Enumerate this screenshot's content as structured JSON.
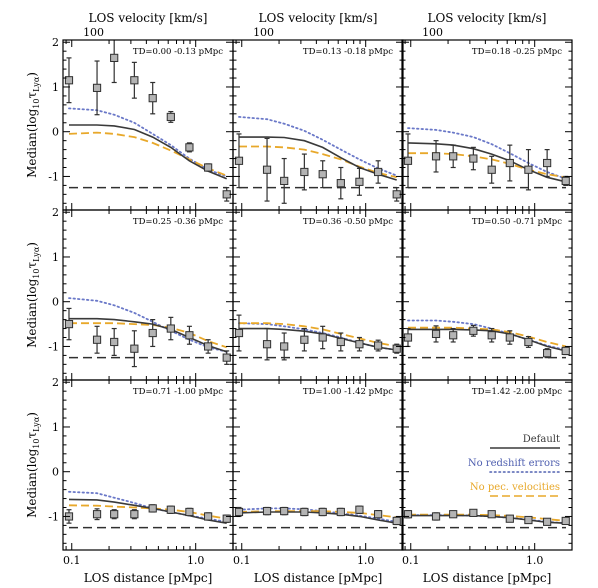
{
  "chart_data": {
    "type": "scatter",
    "top_axis_label": "LOS velocity [km/s]",
    "top_tick_label": "100",
    "top_tick_value_x": 0.15,
    "xlabel": "LOS distance [pMpc]",
    "ylabel": "Median(log10 τLyα)",
    "ylabel_main": "Median(log",
    "ylabel_sub": "10",
    "ylabel_tau": "τ",
    "ylabel_tau_sub": "Lyα",
    "ylabel_close": ")",
    "x_scale": "log",
    "xlim": [
      0.085,
      2.0
    ],
    "ylim": [
      -1.75,
      2.05
    ],
    "x_ticks": [
      {
        "value": 0.1,
        "label": "0.1"
      },
      {
        "value": 1.0,
        "label": "1.0"
      }
    ],
    "y_ticks": [
      {
        "value": 2,
        "label": "2"
      },
      {
        "value": 1,
        "label": "1"
      },
      {
        "value": 0,
        "label": "0"
      },
      {
        "value": -1,
        "label": "-1"
      }
    ],
    "baseline_y": -1.25,
    "x": [
      0.095,
      0.16,
      0.22,
      0.32,
      0.45,
      0.63,
      0.89,
      1.26,
      1.78
    ],
    "colors": {
      "default": "#3a3a3a",
      "no_redshift": "#6a78c8",
      "no_pec": "#e8a82a",
      "marker_fill": "#b4b4b4",
      "marker_edge": "#303030",
      "baseline": "#303030",
      "axis": "#000000"
    },
    "legend": {
      "placement": "bottom-right of last panel",
      "entries": [
        {
          "label": "Default",
          "style": "solid",
          "color": "#3a3a3a"
        },
        {
          "label": "No redshift errors",
          "style": "dotted",
          "color": "#5060b0"
        },
        {
          "label": "No pec. velocities",
          "style": "dashed",
          "color": "#e8a82a"
        }
      ]
    },
    "panels": [
      {
        "label": "TD=0.00 -0.13 pMpc",
        "y": [
          1.15,
          0.98,
          1.65,
          1.15,
          0.75,
          0.33,
          -0.35,
          -0.8,
          -1.4
        ],
        "err": [
          0.5,
          0.6,
          0.55,
          0.4,
          0.35,
          0.12,
          0.1,
          0.08,
          0.15
        ],
        "default": [
          0.15,
          0.15,
          0.13,
          0.05,
          -0.12,
          -0.35,
          -0.65,
          -0.88,
          -1.05
        ],
        "no_redshift": [
          0.52,
          0.48,
          0.38,
          0.2,
          -0.05,
          -0.3,
          -0.6,
          -0.85,
          -1.0
        ],
        "no_pec": [
          -0.05,
          -0.02,
          -0.05,
          -0.12,
          -0.25,
          -0.42,
          -0.62,
          -0.82,
          -0.98
        ]
      },
      {
        "label": "TD=0.13 -0.18 pMpc",
        "y": [
          -0.65,
          -0.85,
          -1.1,
          -0.9,
          -0.95,
          -1.15,
          -1.12,
          -0.9,
          -1.4
        ],
        "err": [
          0.6,
          0.7,
          0.5,
          0.4,
          0.3,
          0.35,
          0.3,
          0.25,
          0.15
        ],
        "default": [
          -0.12,
          -0.12,
          -0.13,
          -0.2,
          -0.35,
          -0.58,
          -0.8,
          -0.95,
          -1.08
        ],
        "no_redshift": [
          0.33,
          0.28,
          0.18,
          0.02,
          -0.18,
          -0.4,
          -0.62,
          -0.82,
          -0.98
        ],
        "no_pec": [
          -0.33,
          -0.33,
          -0.35,
          -0.4,
          -0.5,
          -0.62,
          -0.78,
          -0.92,
          -1.02
        ]
      },
      {
        "label": "TD=0.18 -0.25 pMpc",
        "y": [
          -0.65,
          -0.55,
          -0.55,
          -0.6,
          -0.85,
          -0.7,
          -0.85,
          -0.7,
          -1.1
        ],
        "err": [
          0.6,
          0.35,
          0.25,
          0.25,
          0.3,
          0.4,
          0.45,
          0.3,
          0.1
        ],
        "default": [
          -0.25,
          -0.27,
          -0.3,
          -0.38,
          -0.5,
          -0.65,
          -0.85,
          -1.02,
          -1.12
        ],
        "no_redshift": [
          0.08,
          0.04,
          -0.02,
          -0.12,
          -0.28,
          -0.48,
          -0.7,
          -0.9,
          -1.05
        ],
        "no_pec": [
          -0.48,
          -0.48,
          -0.5,
          -0.55,
          -0.62,
          -0.72,
          -0.85,
          -0.95,
          -1.02
        ]
      },
      {
        "label": "TD=0.25 -0.36 pMpc",
        "y": [
          -0.5,
          -0.85,
          -0.9,
          -1.05,
          -0.7,
          -0.6,
          -0.75,
          -1.0,
          -1.25
        ],
        "err": [
          0.35,
          0.3,
          0.3,
          0.4,
          0.3,
          0.25,
          0.2,
          0.15,
          0.15
        ],
        "default": [
          -0.38,
          -0.38,
          -0.4,
          -0.45,
          -0.5,
          -0.62,
          -0.8,
          -0.98,
          -1.12
        ],
        "no_redshift": [
          0.08,
          0.02,
          -0.08,
          -0.25,
          -0.45,
          -0.65,
          -0.85,
          -1.02,
          -1.12
        ],
        "no_pec": [
          -0.48,
          -0.48,
          -0.48,
          -0.5,
          -0.52,
          -0.58,
          -0.7,
          -0.88,
          -1.02
        ]
      },
      {
        "label": "TD=0.36 -0.50 pMpc",
        "y": [
          -0.7,
          -0.95,
          -1.0,
          -0.85,
          -0.8,
          -0.9,
          -0.95,
          -0.98,
          -1.05
        ],
        "err": [
          0.4,
          0.35,
          0.3,
          0.25,
          0.25,
          0.2,
          0.15,
          0.12,
          0.1
        ],
        "default": [
          -0.6,
          -0.6,
          -0.62,
          -0.66,
          -0.72,
          -0.82,
          -0.92,
          -1.02,
          -1.08
        ],
        "no_redshift": [
          -0.48,
          -0.5,
          -0.55,
          -0.62,
          -0.7,
          -0.8,
          -0.92,
          -1.02,
          -1.08
        ],
        "no_pec": [
          -0.48,
          -0.48,
          -0.5,
          -0.55,
          -0.62,
          -0.72,
          -0.82,
          -0.92,
          -1.0
        ]
      },
      {
        "label": "TD=0.50 -0.71 pMpc",
        "y": [
          -0.8,
          -0.72,
          -0.75,
          -0.65,
          -0.75,
          -0.8,
          -0.9,
          -1.15,
          -1.1
        ],
        "err": [
          0.2,
          0.18,
          0.15,
          0.12,
          0.15,
          0.15,
          0.12,
          0.1,
          0.08
        ],
        "default": [
          -0.62,
          -0.62,
          -0.62,
          -0.63,
          -0.65,
          -0.72,
          -0.85,
          -1.0,
          -1.1
        ],
        "no_redshift": [
          -0.42,
          -0.42,
          -0.45,
          -0.5,
          -0.6,
          -0.72,
          -0.85,
          -0.98,
          -1.08
        ],
        "no_pec": [
          -0.58,
          -0.58,
          -0.58,
          -0.6,
          -0.62,
          -0.68,
          -0.78,
          -0.9,
          -1.0
        ]
      },
      {
        "label": "TD=0.71 -1.00 pMpc",
        "y": [
          -1.0,
          -0.95,
          -0.95,
          -0.95,
          -0.82,
          -0.85,
          -0.9,
          -1.0,
          -1.05
        ],
        "err": [
          0.15,
          0.12,
          0.1,
          0.1,
          0.08,
          0.08,
          0.08,
          0.08,
          0.08
        ],
        "default": [
          -0.62,
          -0.63,
          -0.68,
          -0.75,
          -0.82,
          -0.9,
          -0.98,
          -1.08,
          -1.15
        ],
        "no_redshift": [
          -0.45,
          -0.48,
          -0.58,
          -0.7,
          -0.82,
          -0.9,
          -0.98,
          -1.05,
          -1.12
        ],
        "no_pec": [
          -0.75,
          -0.76,
          -0.78,
          -0.8,
          -0.82,
          -0.85,
          -0.9,
          -0.98,
          -1.05
        ]
      },
      {
        "label": "TD=1.00 -1.42 pMpc",
        "y": [
          -0.9,
          -0.88,
          -0.88,
          -0.9,
          -0.9,
          -0.9,
          -0.85,
          -0.95,
          -1.1
        ],
        "err": [
          0.1,
          0.08,
          0.08,
          0.08,
          0.08,
          0.08,
          0.08,
          0.08,
          0.08
        ],
        "default": [
          -0.92,
          -0.9,
          -0.9,
          -0.9,
          -0.92,
          -0.95,
          -1.0,
          -1.08,
          -1.15
        ],
        "no_redshift": [
          -0.85,
          -0.82,
          -0.82,
          -0.84,
          -0.88,
          -0.93,
          -0.98,
          -1.05,
          -1.12
        ],
        "no_pec": [
          -0.9,
          -0.88,
          -0.88,
          -0.88,
          -0.88,
          -0.9,
          -0.92,
          -0.97,
          -1.02
        ]
      },
      {
        "label": "TD=1.42 -2.00 pMpc",
        "y": [
          -0.95,
          -1.0,
          -0.95,
          -0.92,
          -0.95,
          -1.05,
          -1.08,
          -1.12,
          -1.1
        ],
        "err": [
          0.08,
          0.08,
          0.07,
          0.07,
          0.07,
          0.07,
          0.07,
          0.07,
          0.07
        ],
        "default": [
          -0.98,
          -0.98,
          -0.98,
          -0.98,
          -1.0,
          -1.03,
          -1.08,
          -1.13,
          -1.15
        ],
        "no_redshift": [
          -0.97,
          -0.97,
          -0.97,
          -0.98,
          -1.0,
          -1.03,
          -1.07,
          -1.12,
          -1.15
        ],
        "no_pec": [
          -0.96,
          -0.96,
          -0.96,
          -0.96,
          -0.97,
          -0.99,
          -1.02,
          -1.06,
          -1.1
        ]
      }
    ]
  }
}
